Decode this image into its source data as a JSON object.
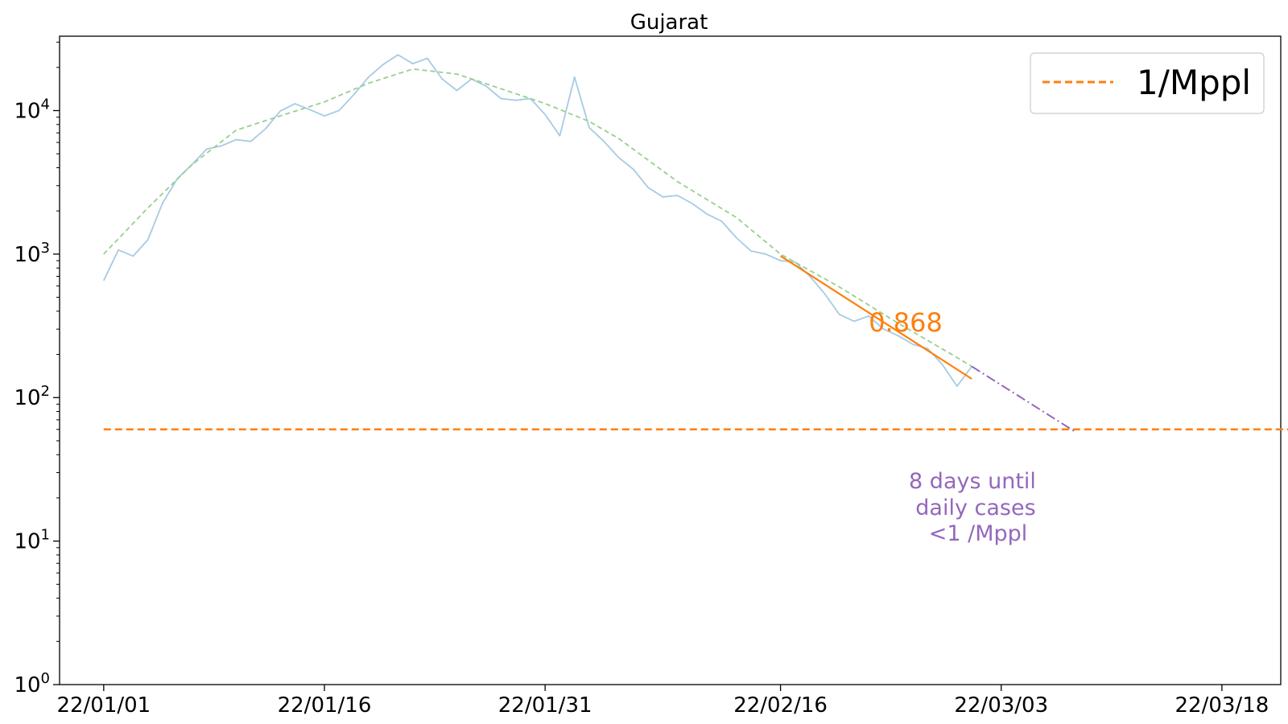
{
  "chart_data": {
    "type": "line",
    "title": "Gujarat",
    "xlabel": "",
    "ylabel": "",
    "y_scale": "log",
    "ylim": [
      1,
      33000
    ],
    "xlim": [
      "2021-12-29",
      "2022-03-22"
    ],
    "x_ticks": [
      "22/01/01",
      "22/01/16",
      "22/01/31",
      "22/02/16",
      "22/03/03",
      "22/03/18"
    ],
    "y_ticks": [
      {
        "value": 1,
        "base": "10",
        "exp": "0"
      },
      {
        "value": 10,
        "base": "10",
        "exp": "1"
      },
      {
        "value": 100,
        "base": "10",
        "exp": "2"
      },
      {
        "value": 1000,
        "base": "10",
        "exp": "3"
      },
      {
        "value": 10000,
        "base": "10",
        "exp": "4"
      }
    ],
    "grid": false,
    "legend": {
      "position": "top-right",
      "entries": [
        "1/Mppl"
      ]
    },
    "colors": {
      "daily": "#a6cbe3",
      "smoothed": "#98d08e",
      "fit": "#ff7f0e",
      "threshold": "#ff7f0e",
      "projection": "#9467bd"
    },
    "series": [
      {
        "style": "daily",
        "x": [
          "2022-01-01",
          "2022-01-02",
          "2022-01-03",
          "2022-01-04",
          "2022-01-05",
          "2022-01-06",
          "2022-01-07",
          "2022-01-08",
          "2022-01-09",
          "2022-01-10",
          "2022-01-11",
          "2022-01-12",
          "2022-01-13",
          "2022-01-14",
          "2022-01-15",
          "2022-01-16",
          "2022-01-17",
          "2022-01-18",
          "2022-01-19",
          "2022-01-20",
          "2022-01-21",
          "2022-01-22",
          "2022-01-23",
          "2022-01-24",
          "2022-01-25",
          "2022-01-26",
          "2022-01-27",
          "2022-01-28",
          "2022-01-29",
          "2022-01-30",
          "2022-01-31",
          "2022-02-01",
          "2022-02-02",
          "2022-02-03",
          "2022-02-04",
          "2022-02-05",
          "2022-02-06",
          "2022-02-07",
          "2022-02-08",
          "2022-02-09",
          "2022-02-10",
          "2022-02-11",
          "2022-02-12",
          "2022-02-13",
          "2022-02-14",
          "2022-02-15",
          "2022-02-16",
          "2022-02-17",
          "2022-02-18",
          "2022-02-19",
          "2022-02-20",
          "2022-02-21",
          "2022-02-22",
          "2022-02-23",
          "2022-02-24",
          "2022-02-25",
          "2022-02-26",
          "2022-02-27",
          "2022-02-28",
          "2022-03-01"
        ],
        "y": [
          654,
          1069,
          968,
          1259,
          2265,
          3350,
          4213,
          5396,
          5677,
          6275,
          6097,
          7476,
          9941,
          11176,
          10150,
          9177,
          10019,
          12911,
          17119,
          20966,
          24485,
          21225,
          23150,
          16617,
          13805,
          16608,
          14781,
          12131,
          11800,
          12131,
          9395,
          6679,
          17119,
          7606,
          6097,
          4710,
          3897,
          2909,
          2502,
          2560,
          2252,
          1900,
          1695,
          1300,
          1051,
          1000,
          900,
          880,
          700,
          530,
          380,
          340,
          370,
          300,
          270,
          235,
          220,
          170,
          120,
          165
        ]
      },
      {
        "style": "smoothed",
        "x": [
          "2022-01-01",
          "2022-01-04",
          "2022-01-07",
          "2022-01-10",
          "2022-01-13",
          "2022-01-16",
          "2022-01-19",
          "2022-01-22",
          "2022-01-25",
          "2022-01-28",
          "2022-01-31",
          "2022-02-03",
          "2022-02-05",
          "2022-02-09",
          "2022-02-13",
          "2022-02-16",
          "2022-02-20",
          "2022-02-24",
          "2022-02-28",
          "2022-03-01"
        ],
        "y": [
          1000,
          2100,
          4200,
          7300,
          9200,
          11500,
          15500,
          19500,
          18000,
          14200,
          11200,
          8400,
          6400,
          3200,
          1800,
          1000,
          590,
          330,
          190,
          165
        ]
      },
      {
        "style": "fit",
        "label": "0.868",
        "x": [
          "2022-02-16",
          "2022-03-01"
        ],
        "y": [
          970,
          135
        ]
      },
      {
        "style": "threshold",
        "name": "1/Mppl",
        "x": [
          "2022-01-01",
          "2022-03-23"
        ],
        "y": [
          60,
          60
        ]
      },
      {
        "style": "projection",
        "x": [
          "2022-03-01",
          "2022-03-08"
        ],
        "y": [
          165,
          58
        ]
      }
    ],
    "annotations": {
      "fit_label": "0.868",
      "projection_lines": [
        "8 days until",
        "daily cases",
        "<1 /Mppl"
      ]
    }
  }
}
